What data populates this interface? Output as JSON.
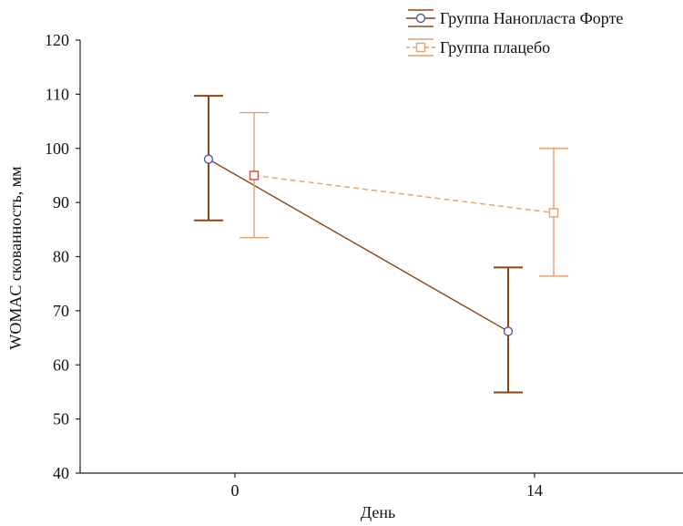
{
  "chart_data": {
    "type": "line",
    "title": "",
    "xlabel": "День",
    "ylabel": "WOMAC скованность, мм",
    "ylim": [
      40,
      120
    ],
    "yticks": [
      40,
      50,
      60,
      70,
      80,
      90,
      100,
      110,
      120
    ],
    "categories": [
      "0",
      "14"
    ],
    "legend_position": "top-right",
    "grid": false,
    "series": [
      {
        "name": "Группа Нанопласта Форте",
        "color": "#8b4513",
        "marker": "circle",
        "marker_color": "#5a5a8a",
        "line_style": "solid",
        "values": [
          98,
          66.2
        ],
        "error_upper": [
          109.7,
          78
        ],
        "error_lower": [
          86.7,
          54.9
        ]
      },
      {
        "name": "Группа плацебо",
        "color": "#e0a070",
        "marker": "square",
        "marker_color": "#e04040",
        "line_style": "dashed",
        "values": [
          95,
          88.1
        ],
        "error_upper": [
          106.6,
          100
        ],
        "error_lower": [
          83.5,
          76.4
        ]
      }
    ]
  }
}
